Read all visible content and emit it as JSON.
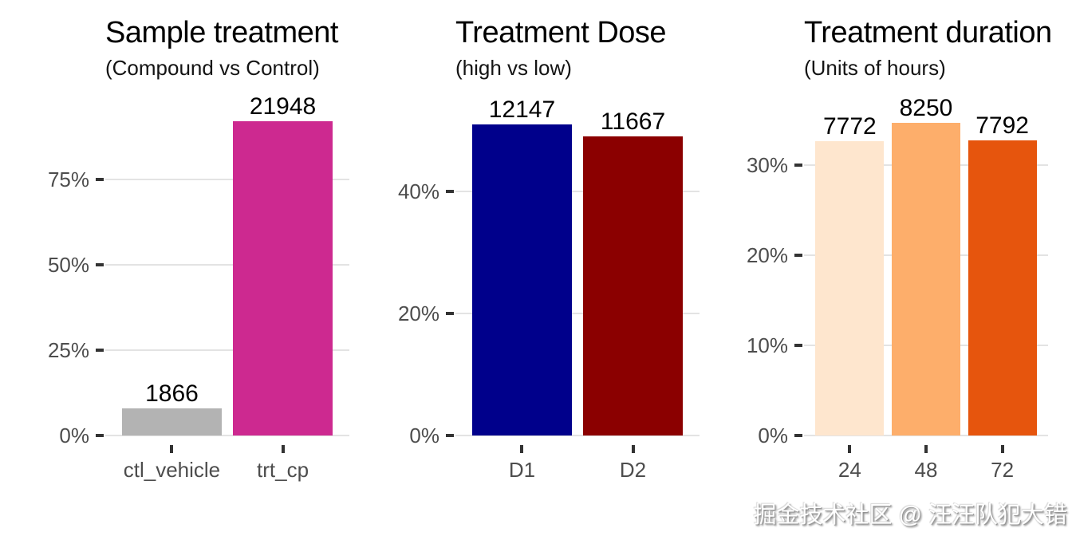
{
  "style": {
    "background": "#FFFFFF",
    "axis_text_color": "#4D4D4D",
    "tick_color": "#333333",
    "grid_color": "#E3E3E3",
    "title_color": "#000000"
  },
  "watermark": {
    "text": "掘金技术社区 @ 汪汪队犯大错"
  },
  "chart_data": [
    {
      "type": "bar",
      "title": "Sample treatment",
      "subtitle": "(Compound vs Control)",
      "xlabel": "",
      "ylabel": "",
      "categories": [
        "ctl_vehicle",
        "trt_cp"
      ],
      "values": [
        1866,
        21948
      ],
      "value_labels": [
        "1866",
        "21948"
      ],
      "percent_of_total": [
        7.84,
        92.16
      ],
      "bar_colors": [
        "#B3B3B3",
        "#CD2990"
      ],
      "ytick_values": [
        0,
        25,
        50,
        75
      ],
      "ytick_labels": [
        "0%",
        "25%",
        "50%",
        "75%"
      ],
      "yaxis_top_percent": 94.9,
      "grid": true,
      "legend": false
    },
    {
      "type": "bar",
      "title": "Treatment Dose",
      "subtitle": "(high vs low)",
      "xlabel": "",
      "ylabel": "",
      "categories": [
        "D1",
        "D2"
      ],
      "values": [
        12147,
        11667
      ],
      "value_labels": [
        "12147",
        "11667"
      ],
      "percent_of_total": [
        51.01,
        48.99
      ],
      "bar_colors": [
        "#00008B",
        "#8B0000"
      ],
      "ytick_values": [
        0,
        20,
        40
      ],
      "ytick_labels": [
        "0%",
        "20%",
        "40%"
      ],
      "yaxis_top_percent": 53.1,
      "grid": true,
      "legend": false
    },
    {
      "type": "bar",
      "title": "Treatment duration",
      "subtitle": "(Units of hours)",
      "xlabel": "",
      "ylabel": "",
      "categories": [
        "24",
        "48",
        "72"
      ],
      "values": [
        7772,
        8250,
        7792
      ],
      "value_labels": [
        "7772",
        "8250",
        "7792"
      ],
      "percent_of_total": [
        32.64,
        34.64,
        32.72
      ],
      "bar_colors": [
        "#FEE6CE",
        "#FDAE6B",
        "#E6550D"
      ],
      "ytick_values": [
        0,
        10,
        20,
        30
      ],
      "ytick_labels": [
        "0%",
        "10%",
        "20%",
        "30%"
      ],
      "yaxis_top_percent": 35.9,
      "grid": true,
      "legend": false
    }
  ]
}
